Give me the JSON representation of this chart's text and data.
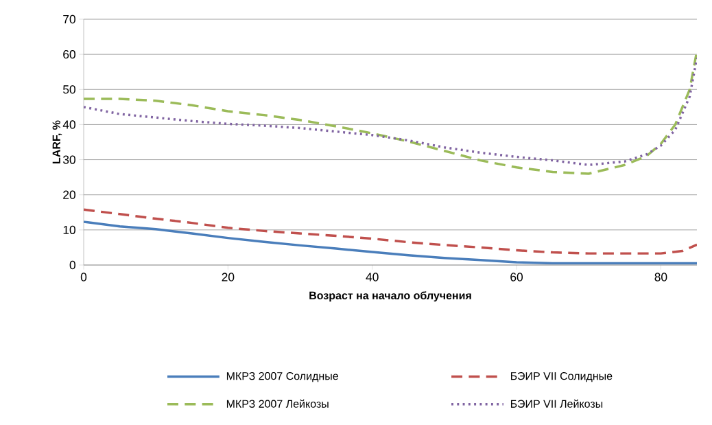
{
  "chart_data": {
    "type": "line",
    "xlabel": "Возраст на начало облучения",
    "ylabel": "LARF, %",
    "xlim": [
      0,
      85
    ],
    "xticks": [
      0,
      20,
      40,
      60,
      80
    ],
    "ylim": [
      0,
      70
    ],
    "yticks": [
      0,
      10,
      20,
      30,
      40,
      50,
      60,
      70
    ],
    "grid": "y",
    "legend": "bottom",
    "marker": "none",
    "series": [
      {
        "name": "МКРЗ 2007 Солидные",
        "color": "#4a7ebb",
        "line_style": "solid",
        "x": [
          0,
          5,
          10,
          15,
          20,
          25,
          30,
          35,
          40,
          45,
          50,
          55,
          60,
          65,
          70,
          75,
          80,
          85
        ],
        "values": [
          12.3,
          11,
          10.2,
          9,
          7.7,
          6.6,
          5.6,
          4.7,
          3.7,
          2.8,
          2,
          1.4,
          0.8,
          0.5,
          0.5,
          0.5,
          0.5,
          0.5
        ]
      },
      {
        "name": "БЭИР VII Солидные",
        "color": "#c0504d",
        "line_style": "dashed",
        "x": [
          0,
          5,
          10,
          15,
          20,
          25,
          30,
          35,
          40,
          45,
          50,
          55,
          60,
          65,
          70,
          75,
          80,
          83,
          85
        ],
        "values": [
          15.8,
          14.5,
          13.2,
          12,
          10.6,
          9.7,
          9,
          8.3,
          7.5,
          6.5,
          5.7,
          5,
          4.2,
          3.6,
          3.3,
          3.3,
          3.3,
          4,
          5.8
        ]
      },
      {
        "name": "МКРЗ 2007 Лейкозы",
        "color": "#9bbb59",
        "line_style": "dashed",
        "x": [
          0,
          5,
          10,
          15,
          20,
          25,
          30,
          35,
          40,
          45,
          50,
          55,
          60,
          65,
          70,
          75,
          78,
          80,
          82,
          84,
          85
        ],
        "values": [
          47.3,
          47.3,
          46.8,
          45.5,
          43.8,
          42.7,
          41.3,
          39.5,
          37.5,
          35.2,
          32.5,
          29.8,
          27.8,
          26.5,
          26,
          28.5,
          31,
          34.5,
          40,
          50,
          61
        ]
      },
      {
        "name": "БЭИР VII Лейкозы",
        "color": "#8064a2",
        "line_style": "dotted",
        "x": [
          0,
          5,
          10,
          15,
          20,
          25,
          30,
          35,
          40,
          45,
          50,
          55,
          60,
          65,
          70,
          75,
          78,
          80,
          82,
          84,
          85
        ],
        "values": [
          45,
          43,
          42,
          41,
          40.2,
          39.7,
          39,
          38,
          37,
          35.5,
          33.5,
          32,
          30.8,
          29.8,
          28.5,
          29.5,
          31.5,
          34,
          38.5,
          48,
          59
        ]
      }
    ]
  }
}
